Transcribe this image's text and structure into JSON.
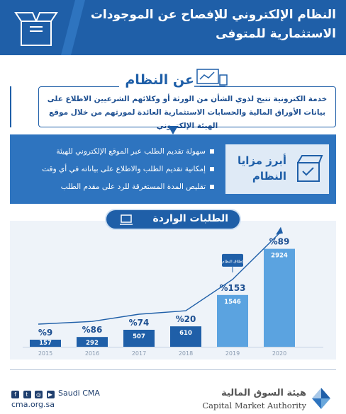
{
  "header": {
    "title": "النظام الإلكتروني للإفصاح عن الموجودات الاستثمارية للمتوفى"
  },
  "about": {
    "title": "عن النظام",
    "text": "خدمة الكترونية تتيح لذوي الشأن من الورثة أو وكلائهم الشرعيين الاطلاع على بيانات الأوراق المالية والحسابات الاستثمارية العائدة لمورثهم من خلال موقع الهيئة الإلكتروني"
  },
  "features": {
    "title": "أبرز مزايا النظام",
    "items": [
      "سهولة تقديم الطلب عبر الموقع الإلكتروني للهيئة",
      "إمكانية تقديم الطلب والاطلاع على بياناته في أي وقت",
      "تقليص المدة المستغرقة للرد على مقدم الطلب"
    ]
  },
  "requests": {
    "title": "الطلبات الواردة"
  },
  "chart_data": {
    "type": "bar",
    "categories": [
      "2015",
      "2016",
      "2017",
      "2018",
      "2019",
      "2020"
    ],
    "values": [
      157,
      292,
      507,
      610,
      1546,
      2924
    ],
    "growth_labels": [
      "%9",
      "%86",
      "%74",
      "%20",
      "%153",
      "%89"
    ],
    "annotation": "إطلاق النظام",
    "annotation_category": "2019",
    "title": "الطلبات الواردة",
    "xlabel": "",
    "ylabel": "",
    "ylim": [
      0,
      3000
    ],
    "grid": false,
    "colors": {
      "early": "#1f5fa8",
      "late": "#5ba3e0",
      "arrow": "#1f5fa8"
    }
  },
  "footer": {
    "social_handle": "Saudi CMA",
    "website": "cma.org.sa",
    "org_name_ar": "هيئة السوق المالية",
    "org_name_en": "Capital Market Authority",
    "social_icons": [
      "facebook-icon",
      "twitter-icon",
      "instagram-icon",
      "youtube-icon"
    ]
  }
}
